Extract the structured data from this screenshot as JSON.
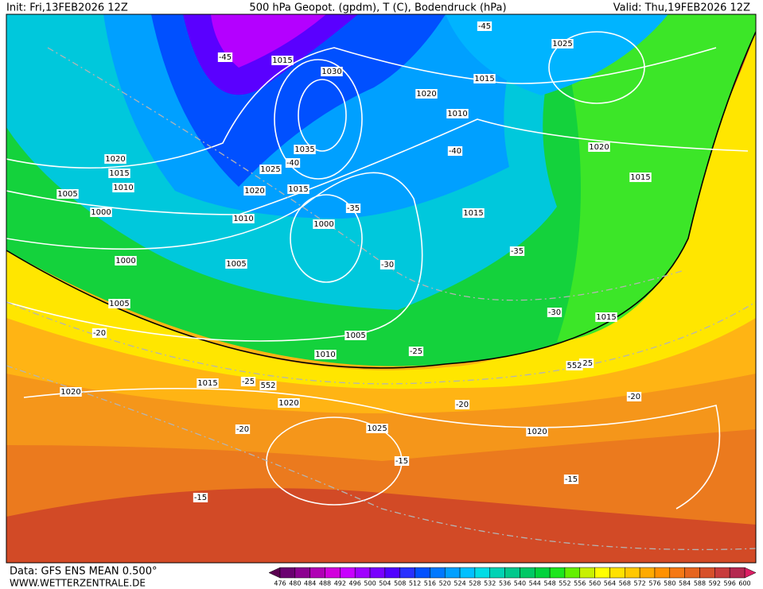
{
  "header": {
    "init": "Init: Fri,13FEB2026 12Z",
    "title": "500 hPa Geopot. (gpdm), T (C), Bodendruck (hPa)",
    "valid": "Valid: Thu,19FEB2026 12Z"
  },
  "map": {
    "isobar_labels": [
      "1015",
      "1030",
      "1025",
      "1020",
      "1015",
      "1010",
      "1020",
      "1015",
      "1010",
      "1005",
      "1000",
      "1035",
      "1025",
      "1020",
      "1015",
      "1010",
      "1000",
      "1005",
      "1000",
      "1015",
      "1020",
      "1015",
      "1005",
      "1005",
      "1010",
      "1015",
      "1015",
      "1020",
      "1020",
      "1025",
      "1020"
    ],
    "temperature_labels": [
      "-45",
      "-45",
      "-40",
      "-40",
      "-35",
      "-35",
      "-30",
      "-30",
      "-25",
      "-25",
      "-25",
      "-20",
      "-20",
      "-20",
      "-20",
      "-15",
      "-15",
      "-15"
    ],
    "geopotential_labels": [
      "552",
      "552"
    ]
  },
  "footer": {
    "data": "Data: GFS ENS MEAN 0.500°",
    "site": "WWW.WETTERZENTRALE.DE"
  },
  "legend": {
    "levels": [
      476,
      480,
      484,
      488,
      492,
      496,
      500,
      504,
      508,
      512,
      516,
      520,
      524,
      528,
      532,
      536,
      540,
      544,
      548,
      552,
      556,
      560,
      564,
      568,
      572,
      576,
      580,
      584,
      588,
      592,
      596,
      600
    ],
    "colors": [
      "#6a0070",
      "#8c0090",
      "#b000b4",
      "#d200dc",
      "#c800ff",
      "#a000ff",
      "#7800ff",
      "#5000ff",
      "#2830ff",
      "#0050ff",
      "#0078ff",
      "#00a0ff",
      "#00c0ff",
      "#00dce6",
      "#00d2b4",
      "#00c88c",
      "#00c864",
      "#00d23c",
      "#1ee61e",
      "#64f000",
      "#c8f000",
      "#ffff00",
      "#ffe100",
      "#ffc800",
      "#ffaa00",
      "#ff9100",
      "#f57814",
      "#e6641e",
      "#d7502a",
      "#c83c3c",
      "#b42850"
    ],
    "end_colors": [
      "#5a0050",
      "#dc1e64"
    ]
  }
}
